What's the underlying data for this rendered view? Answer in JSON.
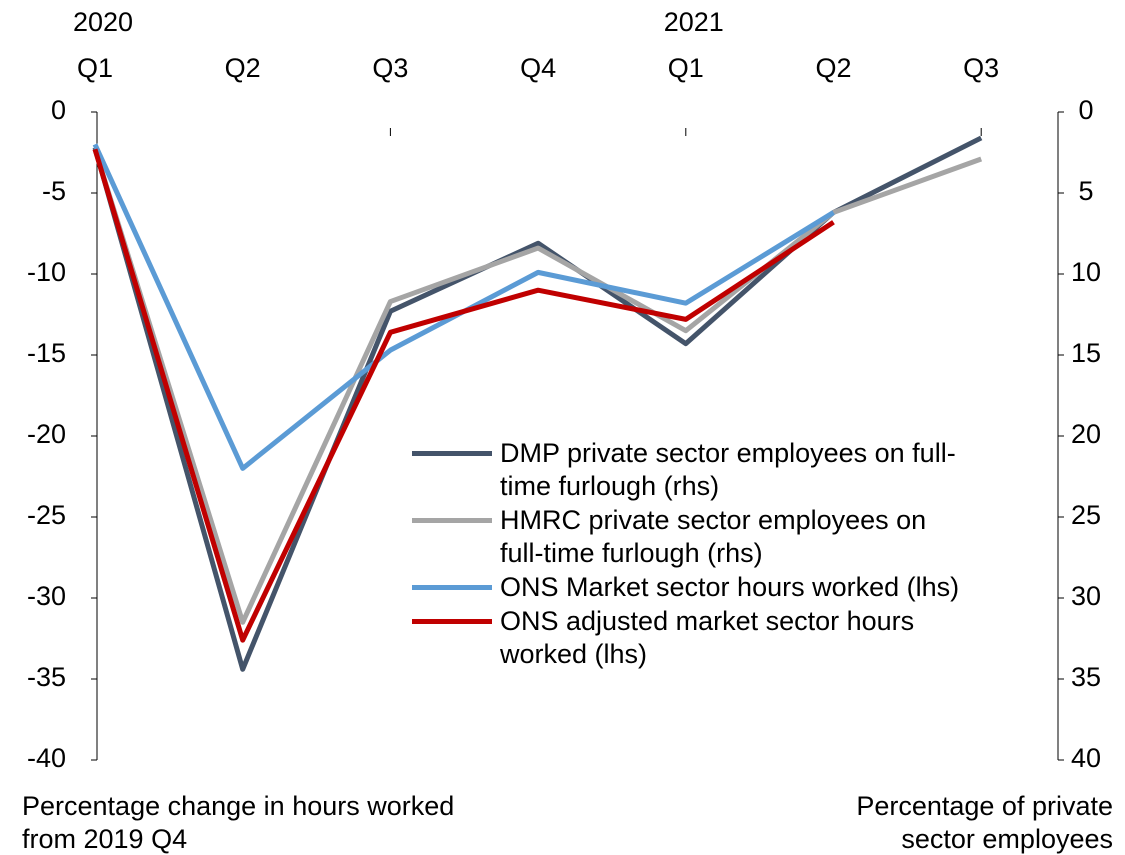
{
  "chart_data": {
    "type": "line",
    "categories": [
      "Q1",
      "Q2",
      "Q3",
      "Q4",
      "Q1",
      "Q2",
      "Q3"
    ],
    "year_labels": [
      "2020",
      null,
      null,
      null,
      "2021",
      null,
      null
    ],
    "y_label": "Percentage change in hours worked from 2019 Q4",
    "y2_label": "Percentage of private sector employees",
    "ylim": [
      -40,
      0
    ],
    "yticks": [
      0,
      -5,
      -10,
      -15,
      -20,
      -25,
      -30,
      -35,
      -40
    ],
    "y2lim": [
      0,
      40
    ],
    "y2ticks": [
      0,
      5,
      10,
      15,
      20,
      25,
      30,
      35,
      40
    ],
    "y2_inverted": true,
    "series": [
      {
        "name": "DMP private sector employees on full-time furlough (rhs)",
        "color": "#44546a",
        "axis": "y2",
        "values": [
          2.2,
          34.4,
          12.3,
          8.1,
          14.3,
          6.2,
          1.6
        ]
      },
      {
        "name": "HMRC private sector employees on full-time furlough (rhs)",
        "color": "#a5a5a5",
        "axis": "y2",
        "values": [
          2.3,
          31.5,
          11.7,
          8.4,
          13.5,
          6.2,
          2.9
        ]
      },
      {
        "name": "ONS Market sector hours worked (lhs)",
        "color": "#5b9bd5",
        "values": [
          -2.0,
          -22.0,
          -14.7,
          -9.9,
          -11.8,
          -6.2,
          null
        ]
      },
      {
        "name": "ONS adjusted market sector hours worked (lhs)",
        "color": "#c00000",
        "values": [
          -2.3,
          -32.6,
          -13.6,
          -11.0,
          -12.8,
          -6.8,
          null
        ]
      }
    ]
  }
}
